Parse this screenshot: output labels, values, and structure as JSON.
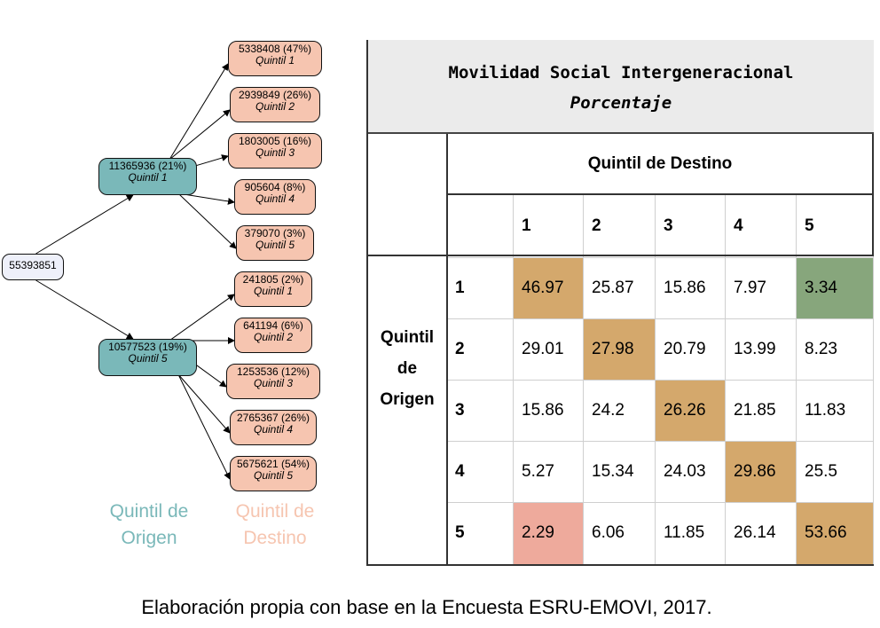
{
  "tree": {
    "root": "55393851",
    "branches": [
      {
        "origin_value": "11365936 (21%)",
        "origin_label": "Quintil 1",
        "destinations": [
          {
            "value": "5338408 (47%)",
            "label": "Quintil 1"
          },
          {
            "value": "2939849 (26%)",
            "label": "Quintil 2"
          },
          {
            "value": "1803005 (16%)",
            "label": "Quintil 3"
          },
          {
            "value": "905604 (8%)",
            "label": "Quintil 4"
          },
          {
            "value": "379070 (3%)",
            "label": "Quintil 5"
          }
        ]
      },
      {
        "origin_value": "10577523 (19%)",
        "origin_label": "Quintil 5",
        "destinations": [
          {
            "value": "241805 (2%)",
            "label": "Quintil 1"
          },
          {
            "value": "641194 (6%)",
            "label": "Quintil 2"
          },
          {
            "value": "1253536 (12%)",
            "label": "Quintil 3"
          },
          {
            "value": "2765367 (26%)",
            "label": "Quintil 4"
          },
          {
            "value": "5675621 (54%)",
            "label": "Quintil 5"
          }
        ]
      }
    ],
    "legend_origin": [
      "Quintil de",
      "Origen"
    ],
    "legend_destination": [
      "Quintil de",
      "Destino"
    ]
  },
  "matrix": {
    "title": "Movilidad Social Intergeneracional",
    "subtitle": "Porcentaje",
    "column_header": "Quintil de Destino",
    "row_header": [
      "Quintil",
      "de",
      "Origen"
    ],
    "columns": [
      "1",
      "2",
      "3",
      "4",
      "5"
    ],
    "rows": [
      {
        "label": "1",
        "values": [
          "46.97",
          "25.87",
          "15.86",
          "7.97",
          "3.34"
        ]
      },
      {
        "label": "2",
        "values": [
          "29.01",
          "27.98",
          "20.79",
          "13.99",
          "8.23"
        ]
      },
      {
        "label": "3",
        "values": [
          "15.86",
          "24.2",
          "26.26",
          "21.85",
          "11.83"
        ]
      },
      {
        "label": "4",
        "values": [
          "5.27",
          "15.34",
          "24.03",
          "29.86",
          "25.5"
        ]
      },
      {
        "label": "5",
        "values": [
          "2.29",
          "6.06",
          "11.85",
          "26.14",
          "53.66"
        ]
      }
    ],
    "highlights": [
      {
        "row": 0,
        "col": 0,
        "color": "#d4a86c"
      },
      {
        "row": 0,
        "col": 4,
        "color": "#87a67c"
      },
      {
        "row": 1,
        "col": 1,
        "color": "#d4a86c"
      },
      {
        "row": 2,
        "col": 2,
        "color": "#d4a86c"
      },
      {
        "row": 3,
        "col": 3,
        "color": "#d4a86c"
      },
      {
        "row": 4,
        "col": 0,
        "color": "#eeaa9c"
      },
      {
        "row": 4,
        "col": 4,
        "color": "#d4a86c"
      }
    ]
  },
  "source_note": "Elaboración propia con base en la Encuesta ESRU-EMOVI, 2017."
}
